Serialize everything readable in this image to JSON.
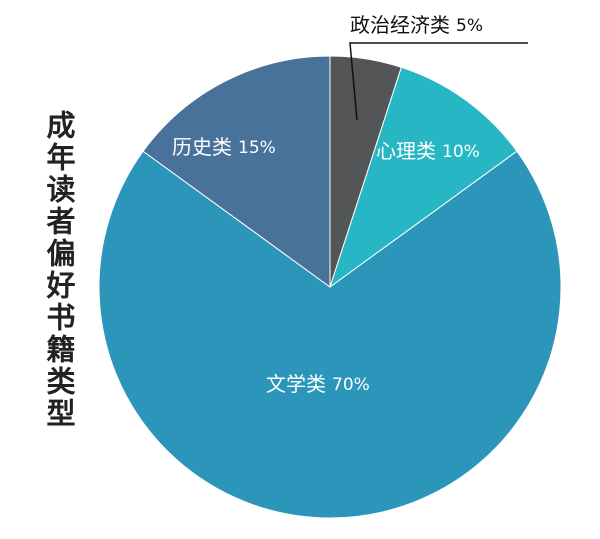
{
  "chart_data": {
    "type": "pie",
    "title": "成年读者偏好书籍类型",
    "categories": [
      "政治经济类",
      "心理类",
      "文学类",
      "历史类"
    ],
    "values": [
      5,
      10,
      70,
      15
    ],
    "value_labels": [
      "5%",
      "10%",
      "70%",
      "15%"
    ],
    "colors": [
      "#545556",
      "#27b6c4",
      "#2b96b9",
      "#49729a"
    ]
  }
}
